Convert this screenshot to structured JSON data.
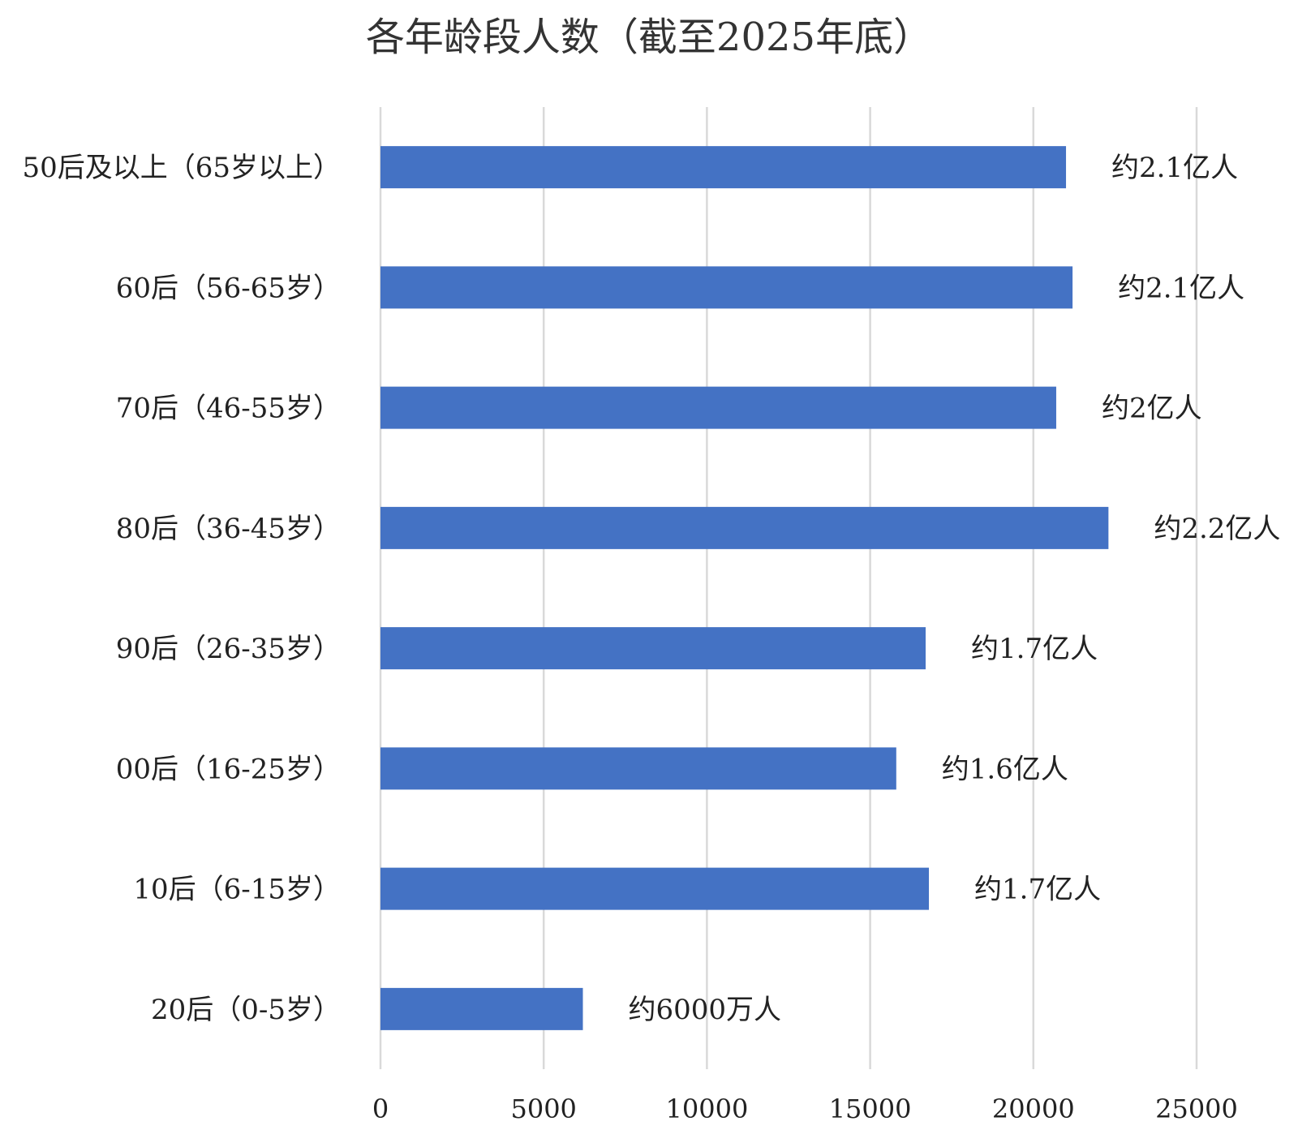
{
  "chart_data": {
    "type": "bar",
    "orientation": "horizontal",
    "title": "各年龄段人数（截至2025年底）",
    "xlabel": "",
    "ylabel": "",
    "xlim": [
      0,
      25000
    ],
    "x_ticks": [
      0,
      5000,
      10000,
      15000,
      20000,
      25000
    ],
    "x_tick_labels": [
      "0",
      "5000",
      "10000",
      "15000",
      "20000",
      "25000"
    ],
    "grid": "vertical",
    "legend": "none",
    "colors": {
      "bar": "#4472c4",
      "grid": "#d9d9d9",
      "text": "#222222"
    },
    "categories": [
      "50后及以上（65岁以上）",
      "60后（56-65岁）",
      "70后（46-55岁）",
      "80后（36-45岁）",
      "90后（26-35岁）",
      "00后（16-25岁）",
      "10后（6-15岁）",
      "20后（0-5岁）"
    ],
    "values": [
      21000,
      21200,
      20700,
      22300,
      16700,
      15800,
      16800,
      6200
    ],
    "data_labels": [
      "约2.1亿人",
      "约2.1亿人",
      "约2亿人",
      "约2.2亿人",
      "约1.7亿人",
      "约1.6亿人",
      "约1.7亿人",
      "约6000万人"
    ]
  }
}
